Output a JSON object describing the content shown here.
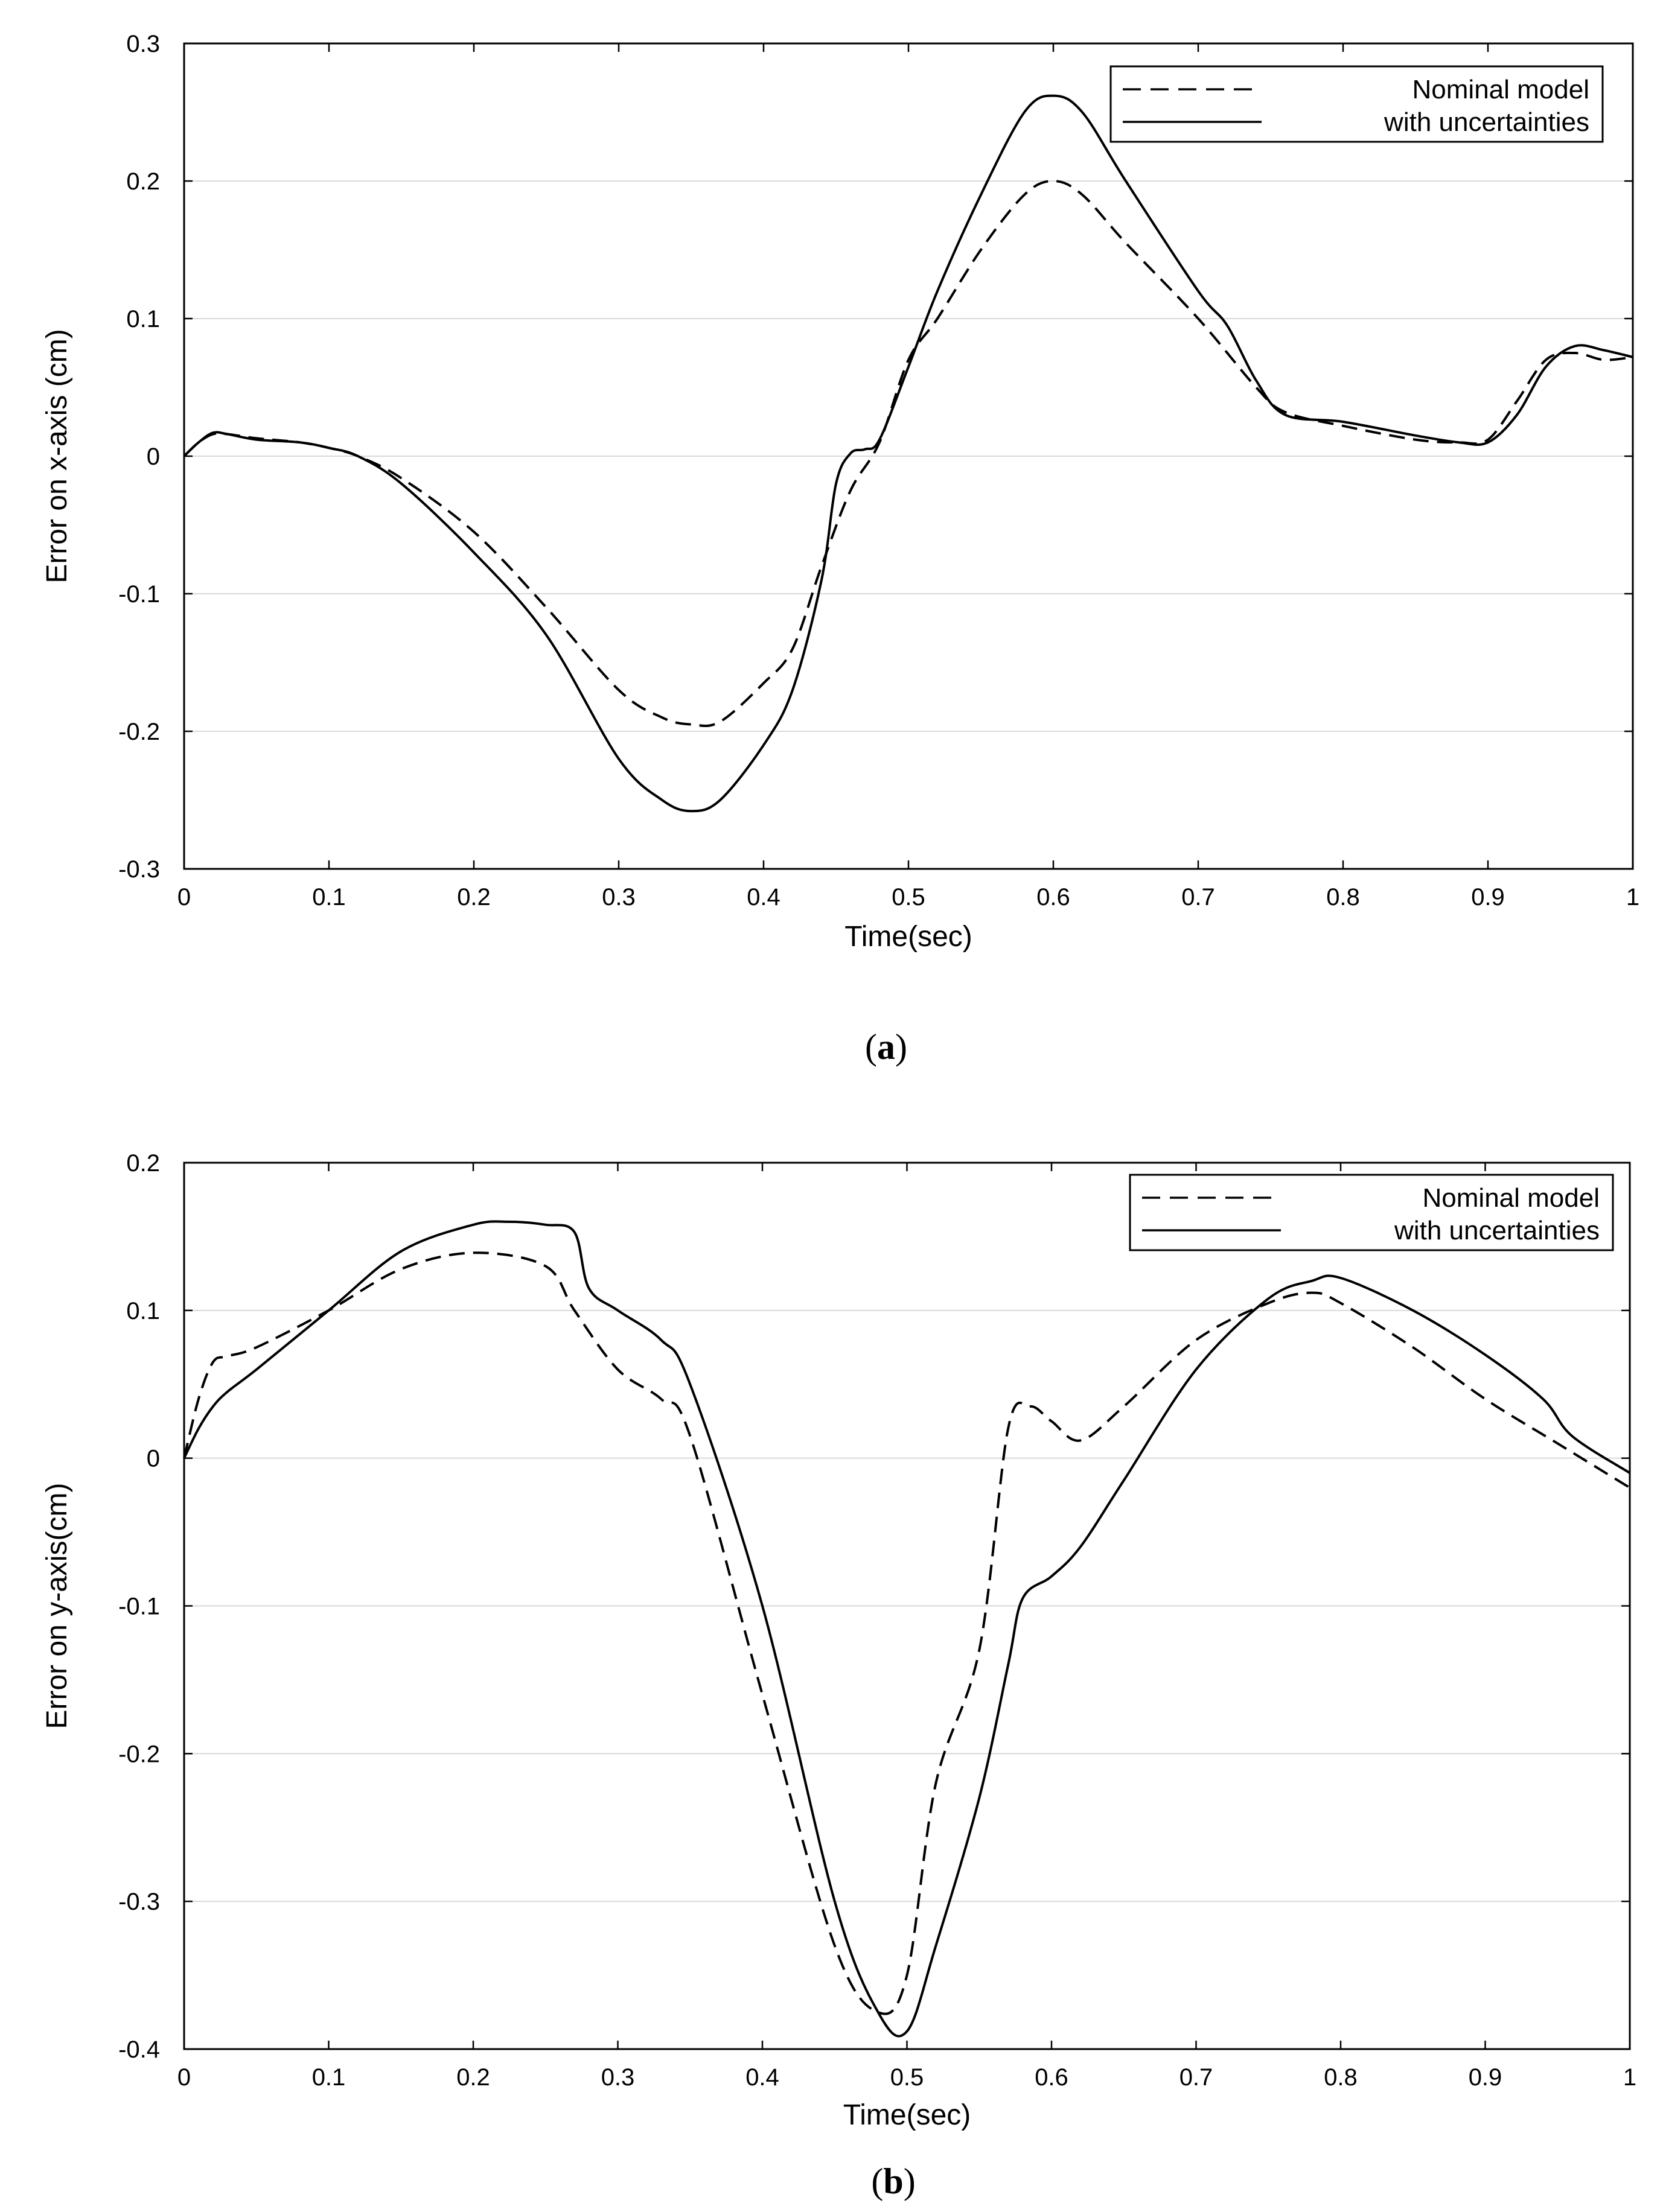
{
  "chart_data": [
    {
      "type": "line",
      "caption_letter": "a",
      "xlabel": "Time(sec)",
      "ylabel": "Error on x-axis (cm)",
      "xlim": [
        0,
        1
      ],
      "ylim": [
        -0.3,
        0.3
      ],
      "xticks": [
        "0",
        "0.1",
        "0.2",
        "0.3",
        "0.4",
        "0.5",
        "0.6",
        "0.7",
        "0.8",
        "0.9",
        "1"
      ],
      "yticks": [
        "-0.3",
        "-0.2",
        "-0.1",
        "0",
        "0.1",
        "0.2",
        "0.3"
      ],
      "grid": true,
      "legend_position": "top-right",
      "series": [
        {
          "name": "Nominal model",
          "style": "dashed",
          "x": [
            0,
            0.01,
            0.02,
            0.03,
            0.05,
            0.08,
            0.1,
            0.12,
            0.15,
            0.2,
            0.25,
            0.3,
            0.33,
            0.35,
            0.37,
            0.4,
            0.42,
            0.44,
            0.46,
            0.48,
            0.5,
            0.52,
            0.55,
            0.58,
            0.6,
            0.62,
            0.65,
            0.7,
            0.74,
            0.76,
            0.8,
            0.85,
            0.88,
            0.9,
            0.92,
            0.94,
            0.96,
            0.98,
            1.0
          ],
          "values": [
            0,
            0.01,
            0.016,
            0.016,
            0.013,
            0.01,
            0.006,
            0,
            -0.016,
            -0.055,
            -0.11,
            -0.17,
            -0.19,
            -0.195,
            -0.193,
            -0.165,
            -0.14,
            -0.08,
            -0.025,
            0.01,
            0.07,
            0.1,
            0.15,
            0.19,
            0.2,
            0.19,
            0.155,
            0.1,
            0.05,
            0.032,
            0.022,
            0.012,
            0.01,
            0.012,
            0.04,
            0.07,
            0.075,
            0.07,
            0.072
          ]
        },
        {
          "name": "with uncertainties",
          "style": "solid",
          "x": [
            0,
            0.01,
            0.02,
            0.03,
            0.05,
            0.08,
            0.1,
            0.12,
            0.15,
            0.2,
            0.25,
            0.3,
            0.33,
            0.35,
            0.37,
            0.4,
            0.42,
            0.44,
            0.45,
            0.46,
            0.47,
            0.48,
            0.5,
            0.52,
            0.55,
            0.58,
            0.6,
            0.62,
            0.65,
            0.7,
            0.72,
            0.74,
            0.76,
            0.8,
            0.85,
            0.88,
            0.9,
            0.92,
            0.94,
            0.96,
            0.98,
            1.0
          ],
          "values": [
            0,
            0.01,
            0.017,
            0.016,
            0.012,
            0.01,
            0.006,
            0,
            -0.02,
            -0.07,
            -0.13,
            -0.22,
            -0.25,
            -0.258,
            -0.25,
            -0.21,
            -0.17,
            -0.09,
            -0.02,
            0.002,
            0.005,
            0.012,
            0.065,
            0.12,
            0.19,
            0.25,
            0.262,
            0.25,
            0.2,
            0.12,
            0.095,
            0.055,
            0.03,
            0.025,
            0.015,
            0.01,
            0.01,
            0.03,
            0.065,
            0.08,
            0.077,
            0.072
          ]
        }
      ]
    },
    {
      "type": "line",
      "caption_letter": "b",
      "xlabel": "Time(sec)",
      "ylabel": "Error on y-axis(cm)",
      "xlim": [
        0,
        1
      ],
      "ylim": [
        -0.4,
        0.2
      ],
      "xticks": [
        "0",
        "0.1",
        "0.2",
        "0.3",
        "0.4",
        "0.5",
        "0.6",
        "0.7",
        "0.8",
        "0.9",
        "1"
      ],
      "yticks": [
        "-0.4",
        "-0.3",
        "-0.2",
        "-0.1",
        "0",
        "0.1",
        "0.2"
      ],
      "grid": true,
      "legend_position": "top-right",
      "series": [
        {
          "name": "Nominal model",
          "style": "dashed",
          "x": [
            0,
            0.01,
            0.02,
            0.03,
            0.05,
            0.1,
            0.15,
            0.2,
            0.25,
            0.27,
            0.3,
            0.33,
            0.35,
            0.4,
            0.45,
            0.48,
            0.5,
            0.52,
            0.55,
            0.57,
            0.585,
            0.6,
            0.62,
            0.65,
            0.7,
            0.75,
            0.78,
            0.8,
            0.85,
            0.9,
            0.95,
            1.0
          ],
          "values": [
            0,
            0.04,
            0.065,
            0.069,
            0.075,
            0.1,
            0.128,
            0.139,
            0.13,
            0.1,
            0.06,
            0.04,
            0.015,
            -0.16,
            -0.33,
            -0.375,
            -0.35,
            -0.22,
            -0.13,
            0.02,
            0.035,
            0.025,
            0.012,
            0.035,
            0.08,
            0.105,
            0.112,
            0.105,
            0.075,
            0.04,
            0.01,
            -0.02
          ]
        },
        {
          "name": "with uncertainties",
          "style": "solid",
          "x": [
            0,
            0.01,
            0.02,
            0.03,
            0.05,
            0.1,
            0.15,
            0.2,
            0.225,
            0.25,
            0.27,
            0.28,
            0.3,
            0.33,
            0.35,
            0.4,
            0.45,
            0.48,
            0.5,
            0.52,
            0.55,
            0.57,
            0.58,
            0.6,
            0.62,
            0.65,
            0.7,
            0.75,
            0.78,
            0.8,
            0.85,
            0.9,
            0.94,
            0.96,
            1.0
          ],
          "values": [
            0,
            0.02,
            0.035,
            0.045,
            0.06,
            0.1,
            0.14,
            0.158,
            0.16,
            0.158,
            0.153,
            0.115,
            0.1,
            0.08,
            0.05,
            -0.1,
            -0.3,
            -0.375,
            -0.388,
            -0.33,
            -0.23,
            -0.14,
            -0.095,
            -0.08,
            -0.06,
            -0.015,
            0.06,
            0.108,
            0.12,
            0.122,
            0.1,
            0.07,
            0.04,
            0.015,
            -0.01
          ]
        }
      ]
    }
  ]
}
